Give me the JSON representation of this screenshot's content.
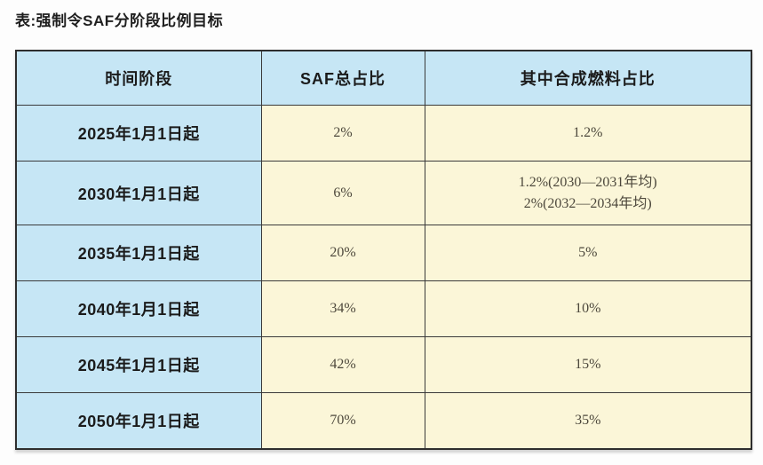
{
  "page": {
    "caption": "表:强制令SAF分阶段比例目标"
  },
  "table": {
    "headers": [
      "时间阶段",
      "SAF总占比",
      "其中合成燃料占比"
    ],
    "rows": [
      {
        "period": "2025年1月1日起",
        "saf_total": "2%",
        "synthetic_line1": "1.2%"
      },
      {
        "period": "2030年1月1日起",
        "saf_total": "6%",
        "synthetic_line1": "1.2%(2030—2031年均)",
        "synthetic_line2": "2%(2032—2034年均)"
      },
      {
        "period": "2035年1月1日起",
        "saf_total": "20%",
        "synthetic_line1": "5%"
      },
      {
        "period": "2040年1月1日起",
        "saf_total": "34%",
        "synthetic_line1": "10%"
      },
      {
        "period": "2045年1月1日起",
        "saf_total": "42%",
        "synthetic_line1": "15%"
      },
      {
        "period": "2050年1月1日起",
        "saf_total": "70%",
        "synthetic_line1": "35%"
      }
    ],
    "colors": {
      "header_bg": "#c6e6f5",
      "data_bg": "#fbf6d8",
      "border": "#3a3a3a",
      "header_text": "#1b1b1b",
      "value_text": "#4d483c"
    }
  }
}
